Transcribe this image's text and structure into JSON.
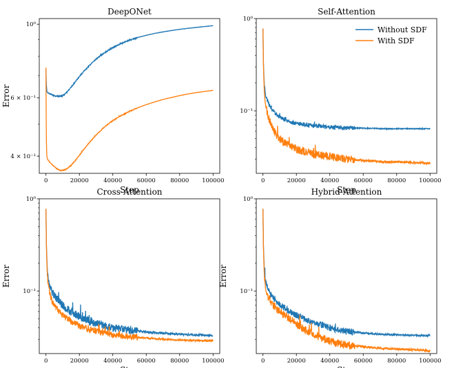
{
  "chart_data": [
    {
      "type": "line",
      "title": "DeepONet",
      "xlabel": "Step",
      "ylabel": "Error",
      "yscale": "log",
      "xlim": [
        -4000,
        104000
      ],
      "ylim": [
        0.355,
        1.04
      ],
      "xticks": [
        0,
        20000,
        40000,
        60000,
        80000,
        100000
      ],
      "xticklabels": [
        "0",
        "20000",
        "40000",
        "60000",
        "80000",
        "100000"
      ],
      "yticks": [
        1.0,
        0.6,
        0.4
      ],
      "yticklabels": [
        "10⁰",
        "6 × 10⁻¹",
        "4 × 10⁻¹"
      ],
      "legend": null,
      "series": [
        {
          "name": "Without SDF",
          "color": "#1f77b4",
          "noise": 0.004,
          "x": [
            0,
            200,
            600,
            1500,
            3000,
            5000,
            7000,
            9000,
            11000,
            13000,
            15000,
            18000,
            22000,
            26000,
            30000,
            35000,
            40000,
            45000,
            50000,
            55000,
            60000,
            65000,
            70000,
            75000,
            80000,
            85000,
            90000,
            95000,
            100000
          ],
          "y": [
            0.73,
            0.66,
            0.625,
            0.62,
            0.615,
            0.608,
            0.606,
            0.607,
            0.613,
            0.627,
            0.645,
            0.675,
            0.715,
            0.75,
            0.785,
            0.82,
            0.85,
            0.875,
            0.895,
            0.912,
            0.926,
            0.938,
            0.948,
            0.957,
            0.965,
            0.972,
            0.978,
            0.984,
            0.99
          ]
        },
        {
          "name": "With SDF",
          "color": "#ff7f0e",
          "noise": 0.003,
          "x": [
            0,
            200,
            500,
            1000,
            2000,
            3500,
            5000,
            7000,
            9000,
            11000,
            13000,
            15000,
            18000,
            22000,
            26000,
            30000,
            35000,
            40000,
            45000,
            50000,
            55000,
            60000,
            65000,
            70000,
            75000,
            80000,
            85000,
            90000,
            95000,
            100000
          ],
          "y": [
            0.74,
            0.46,
            0.4,
            0.39,
            0.385,
            0.378,
            0.372,
            0.365,
            0.362,
            0.363,
            0.368,
            0.375,
            0.39,
            0.415,
            0.44,
            0.463,
            0.49,
            0.512,
            0.53,
            0.546,
            0.56,
            0.572,
            0.583,
            0.593,
            0.601,
            0.609,
            0.616,
            0.622,
            0.627,
            0.632
          ]
        }
      ]
    },
    {
      "type": "line",
      "title": "Self-Attention",
      "xlabel": "Step",
      "ylabel": "",
      "yscale": "log",
      "xlim": [
        -4000,
        104000
      ],
      "ylim": [
        0.021,
        1.0
      ],
      "xticks": [
        0,
        20000,
        40000,
        60000,
        80000,
        100000
      ],
      "xticklabels": [
        "0",
        "20000",
        "40000",
        "60000",
        "80000",
        "100000"
      ],
      "yticks": [
        1.0,
        0.1
      ],
      "yticklabels": [
        "10⁰",
        "10⁻¹"
      ],
      "legend": "top-right",
      "series": [
        {
          "name": "Without SDF",
          "color": "#1f77b4",
          "noise": 0.05,
          "x": [
            0,
            300,
            800,
            1500,
            2500,
            4000,
            6000,
            8000,
            10000,
            13000,
            16000,
            20000,
            25000,
            30000,
            35000,
            40000,
            45000,
            50000,
            60000,
            70000,
            80000,
            90000,
            100000
          ],
          "y": [
            0.78,
            0.32,
            0.19,
            0.15,
            0.13,
            0.115,
            0.1,
            0.092,
            0.085,
            0.08,
            0.076,
            0.073,
            0.071,
            0.069,
            0.068,
            0.067,
            0.066,
            0.065,
            0.065,
            0.064,
            0.064,
            0.064,
            0.064
          ]
        },
        {
          "name": "With SDF",
          "color": "#ff7f0e",
          "noise": 0.1,
          "x": [
            0,
            300,
            800,
            1500,
            2500,
            4000,
            6000,
            8000,
            10000,
            13000,
            16000,
            20000,
            25000,
            30000,
            35000,
            40000,
            45000,
            50000,
            60000,
            70000,
            80000,
            90000,
            100000
          ],
          "y": [
            0.78,
            0.3,
            0.16,
            0.12,
            0.095,
            0.078,
            0.065,
            0.055,
            0.05,
            0.045,
            0.042,
            0.039,
            0.036,
            0.034,
            0.033,
            0.032,
            0.031,
            0.03,
            0.029,
            0.028,
            0.028,
            0.0275,
            0.027
          ]
        }
      ]
    },
    {
      "type": "line",
      "title": "Cross-Attention",
      "xlabel": "Step",
      "ylabel": "Error",
      "yscale": "log",
      "xlim": [
        -4000,
        104000
      ],
      "ylim": [
        0.021,
        1.0
      ],
      "xticks": [
        0,
        20000,
        40000,
        60000,
        80000,
        100000
      ],
      "xticklabels": [
        "0",
        "20000",
        "40000",
        "60000",
        "80000",
        "100000"
      ],
      "yticks": [
        1.0,
        0.1
      ],
      "yticklabels": [
        "10⁰",
        "10⁻¹"
      ],
      "legend": null,
      "series": [
        {
          "name": "Without SDF",
          "color": "#1f77b4",
          "noise": 0.1,
          "x": [
            0,
            300,
            800,
            1500,
            2500,
            4000,
            6000,
            8000,
            10000,
            13000,
            16000,
            20000,
            25000,
            30000,
            35000,
            40000,
            45000,
            50000,
            60000,
            70000,
            80000,
            90000,
            100000
          ],
          "y": [
            0.78,
            0.3,
            0.17,
            0.13,
            0.11,
            0.095,
            0.085,
            0.077,
            0.07,
            0.063,
            0.058,
            0.053,
            0.048,
            0.045,
            0.042,
            0.04,
            0.039,
            0.038,
            0.036,
            0.035,
            0.034,
            0.0335,
            0.033
          ]
        },
        {
          "name": "With SDF",
          "color": "#ff7f0e",
          "noise": 0.08,
          "x": [
            0,
            300,
            800,
            1500,
            2500,
            4000,
            6000,
            8000,
            10000,
            13000,
            16000,
            20000,
            25000,
            30000,
            35000,
            40000,
            45000,
            50000,
            60000,
            70000,
            80000,
            90000,
            100000
          ],
          "y": [
            0.78,
            0.28,
            0.15,
            0.11,
            0.09,
            0.075,
            0.066,
            0.06,
            0.055,
            0.05,
            0.046,
            0.042,
            0.039,
            0.037,
            0.035,
            0.034,
            0.033,
            0.032,
            0.031,
            0.03,
            0.0295,
            0.029,
            0.029
          ]
        }
      ]
    },
    {
      "type": "line",
      "title": "Hybrid-Attention",
      "xlabel": "Step",
      "ylabel": "Error",
      "yscale": "log",
      "xlim": [
        -4000,
        104000
      ],
      "ylim": [
        0.021,
        1.0
      ],
      "xticks": [
        0,
        20000,
        40000,
        60000,
        80000,
        100000
      ],
      "xticklabels": [
        "0",
        "20000",
        "40000",
        "60000",
        "80000",
        "100000"
      ],
      "yticks": [
        1.0,
        0.1
      ],
      "yticklabels": [
        "10⁰",
        "10⁻¹"
      ],
      "legend": null,
      "series": [
        {
          "name": "Without SDF",
          "color": "#1f77b4",
          "noise": 0.08,
          "x": [
            0,
            300,
            800,
            1500,
            2500,
            4000,
            6000,
            8000,
            10000,
            13000,
            16000,
            20000,
            25000,
            30000,
            35000,
            40000,
            45000,
            50000,
            60000,
            70000,
            80000,
            90000,
            100000
          ],
          "y": [
            0.78,
            0.3,
            0.17,
            0.13,
            0.11,
            0.095,
            0.085,
            0.078,
            0.072,
            0.066,
            0.06,
            0.055,
            0.05,
            0.046,
            0.043,
            0.04,
            0.038,
            0.037,
            0.035,
            0.034,
            0.0335,
            0.033,
            0.033
          ]
        },
        {
          "name": "With SDF",
          "color": "#ff7f0e",
          "noise": 0.1,
          "x": [
            0,
            300,
            800,
            1500,
            2500,
            4000,
            6000,
            8000,
            10000,
            13000,
            16000,
            20000,
            25000,
            30000,
            35000,
            40000,
            45000,
            50000,
            60000,
            70000,
            80000,
            90000,
            100000
          ],
          "y": [
            0.78,
            0.28,
            0.15,
            0.11,
            0.09,
            0.08,
            0.072,
            0.066,
            0.06,
            0.055,
            0.05,
            0.044,
            0.038,
            0.034,
            0.031,
            0.029,
            0.027,
            0.026,
            0.025,
            0.024,
            0.0235,
            0.023,
            0.0225
          ]
        }
      ]
    }
  ]
}
